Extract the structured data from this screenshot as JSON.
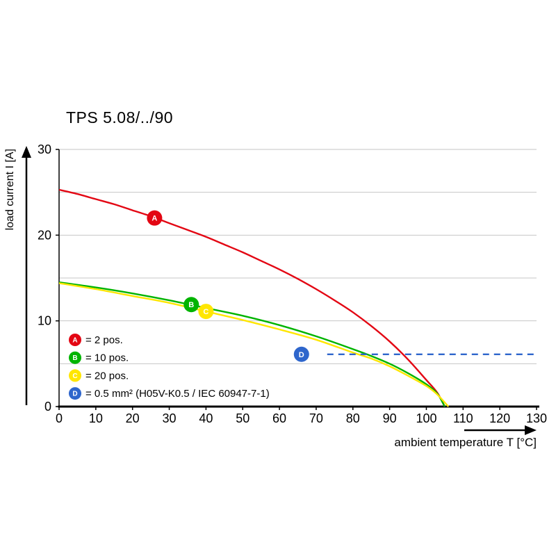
{
  "chart_data": {
    "type": "line",
    "title": "TPS 5.08/../90",
    "xlabel": "ambient temperature T [°C]",
    "ylabel": "load current I [A]",
    "xlim": [
      0,
      130
    ],
    "ylim": [
      0,
      30
    ],
    "xticks": [
      0,
      10,
      20,
      30,
      40,
      50,
      60,
      70,
      80,
      90,
      100,
      110,
      120,
      130
    ],
    "yticks": [
      0,
      10,
      20,
      30
    ],
    "grid_y": [
      5,
      10,
      15,
      20,
      25,
      30
    ],
    "grid_on": true,
    "legend_position": "lower-left-inside",
    "series": [
      {
        "id": "A",
        "name": "2 pos.",
        "color": "#e30613",
        "dashed": false,
        "marker": [
          26,
          22.0
        ],
        "points": [
          [
            0,
            25.3
          ],
          [
            5,
            24.8
          ],
          [
            10,
            24.2
          ],
          [
            15,
            23.6
          ],
          [
            20,
            22.9
          ],
          [
            25,
            22.2
          ],
          [
            30,
            21.4
          ],
          [
            35,
            20.6
          ],
          [
            40,
            19.8
          ],
          [
            45,
            18.9
          ],
          [
            50,
            18.0
          ],
          [
            55,
            17.0
          ],
          [
            60,
            16.0
          ],
          [
            65,
            14.9
          ],
          [
            70,
            13.7
          ],
          [
            75,
            12.4
          ],
          [
            80,
            11.0
          ],
          [
            85,
            9.4
          ],
          [
            90,
            7.6
          ],
          [
            95,
            5.5
          ],
          [
            100,
            3.1
          ],
          [
            103,
            1.6
          ],
          [
            105,
            0
          ]
        ]
      },
      {
        "id": "B",
        "name": "10 pos.",
        "color": "#00b400",
        "dashed": false,
        "marker": [
          36,
          11.9
        ],
        "points": [
          [
            0,
            14.5
          ],
          [
            10,
            13.9
          ],
          [
            20,
            13.2
          ],
          [
            30,
            12.4
          ],
          [
            40,
            11.5
          ],
          [
            50,
            10.6
          ],
          [
            60,
            9.5
          ],
          [
            70,
            8.2
          ],
          [
            80,
            6.7
          ],
          [
            85,
            5.9
          ],
          [
            90,
            5.0
          ],
          [
            95,
            3.9
          ],
          [
            100,
            2.6
          ],
          [
            103,
            1.5
          ],
          [
            105,
            0
          ]
        ]
      },
      {
        "id": "C",
        "name": "20 pos.",
        "color": "#ffe600",
        "dashed": false,
        "marker": [
          40,
          11.1
        ],
        "points": [
          [
            0,
            14.4
          ],
          [
            10,
            13.7
          ],
          [
            20,
            12.9
          ],
          [
            30,
            12.1
          ],
          [
            40,
            11.1
          ],
          [
            50,
            10.1
          ],
          [
            60,
            9.0
          ],
          [
            70,
            7.8
          ],
          [
            80,
            6.3
          ],
          [
            85,
            5.6
          ],
          [
            90,
            4.7
          ],
          [
            95,
            3.6
          ],
          [
            100,
            2.4
          ],
          [
            103,
            1.4
          ],
          [
            106,
            0
          ]
        ]
      },
      {
        "id": "D",
        "name": "0.5 mm² (H05V-K0.5 / IEC 60947-7-1)",
        "color": "#2e66cc",
        "dashed": true,
        "marker": [
          66,
          6.1
        ],
        "points": [
          [
            73,
            6.1
          ],
          [
            130,
            6.1
          ]
        ]
      }
    ],
    "legend": [
      {
        "id": "A",
        "color": "#e30613",
        "label": "= 2 pos."
      },
      {
        "id": "B",
        "color": "#00b400",
        "label": "= 10 pos."
      },
      {
        "id": "C",
        "color": "#ffe600",
        "label": "= 20 pos."
      },
      {
        "id": "D",
        "color": "#2e66cc",
        "label": "= 0.5 mm² (H05V-K0.5 / IEC 60947-7-1)"
      }
    ]
  }
}
